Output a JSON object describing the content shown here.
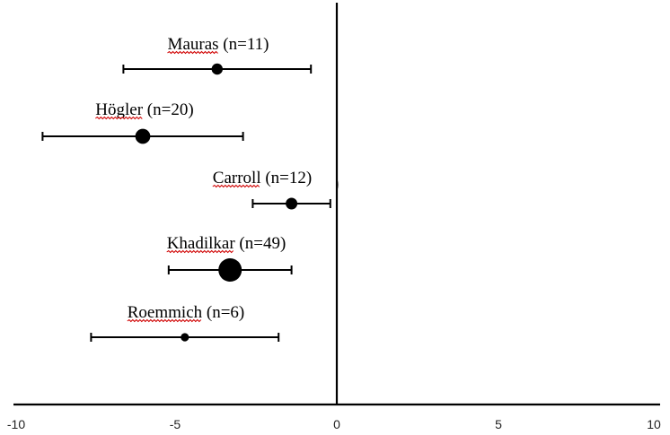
{
  "chart_data": {
    "type": "scatter",
    "title": "",
    "xlabel": "",
    "ylabel": "",
    "xlim": [
      -10,
      10
    ],
    "x_ticks": [
      "-10",
      "-5",
      "0",
      "5",
      "10"
    ],
    "x_tick_values": [
      -10,
      -5,
      0,
      5,
      10
    ],
    "grid": false,
    "studies": [
      {
        "label": "Mauras (n=11)",
        "mean": -3.7,
        "ci_low": -6.6,
        "ci_high": -0.8,
        "n": 11
      },
      {
        "label": "Högler (n=20)",
        "mean": -6.0,
        "ci_low": -9.1,
        "ci_high": -2.9,
        "n": 20
      },
      {
        "label": "Carroll (n=12)",
        "mean": -1.4,
        "ci_low": -2.6,
        "ci_high": -0.2,
        "n": 12
      },
      {
        "label": "Khadilkar (n=49)",
        "mean": -3.3,
        "ci_low": -5.2,
        "ci_high": -1.4,
        "n": 49
      },
      {
        "label": "Roemmich (n=6)",
        "mean": -4.7,
        "ci_low": -7.6,
        "ci_high": -1.8,
        "n": 6
      }
    ],
    "colors": {
      "marker": "#000000",
      "axis": "#000000",
      "spellcheck_underline": "#d00000"
    }
  }
}
